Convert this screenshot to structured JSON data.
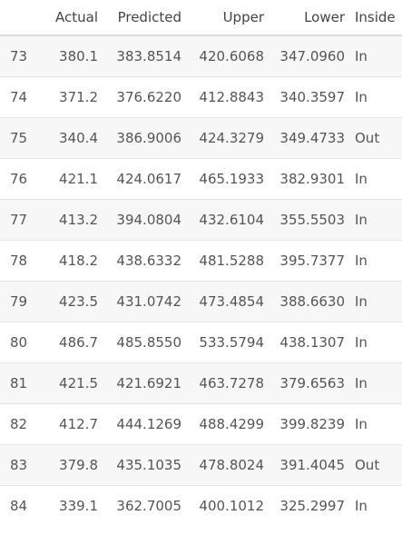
{
  "table": {
    "columns": [
      "",
      "Actual",
      "Predicted",
      "Upper",
      "Lower",
      "Inside"
    ],
    "rows": [
      [
        "73",
        "380.1",
        "383.8514",
        "420.6068",
        "347.0960",
        "In"
      ],
      [
        "74",
        "371.2",
        "376.6220",
        "412.8843",
        "340.3597",
        "In"
      ],
      [
        "75",
        "340.4",
        "386.9006",
        "424.3279",
        "349.4733",
        "Out"
      ],
      [
        "76",
        "421.1",
        "424.0617",
        "465.1933",
        "382.9301",
        "In"
      ],
      [
        "77",
        "413.2",
        "394.0804",
        "432.6104",
        "355.5503",
        "In"
      ],
      [
        "78",
        "418.2",
        "438.6332",
        "481.5288",
        "395.7377",
        "In"
      ],
      [
        "79",
        "423.5",
        "431.0742",
        "473.4854",
        "388.6630",
        "In"
      ],
      [
        "80",
        "486.7",
        "485.8550",
        "533.5794",
        "438.1307",
        "In"
      ],
      [
        "81",
        "421.5",
        "421.6921",
        "463.7278",
        "379.6563",
        "In"
      ],
      [
        "82",
        "412.7",
        "444.1269",
        "488.4299",
        "399.8239",
        "In"
      ],
      [
        "83",
        "379.8",
        "435.1035",
        "478.8024",
        "391.4045",
        "Out"
      ],
      [
        "84",
        "339.1",
        "362.7005",
        "400.1012",
        "325.2997",
        "In"
      ]
    ]
  }
}
